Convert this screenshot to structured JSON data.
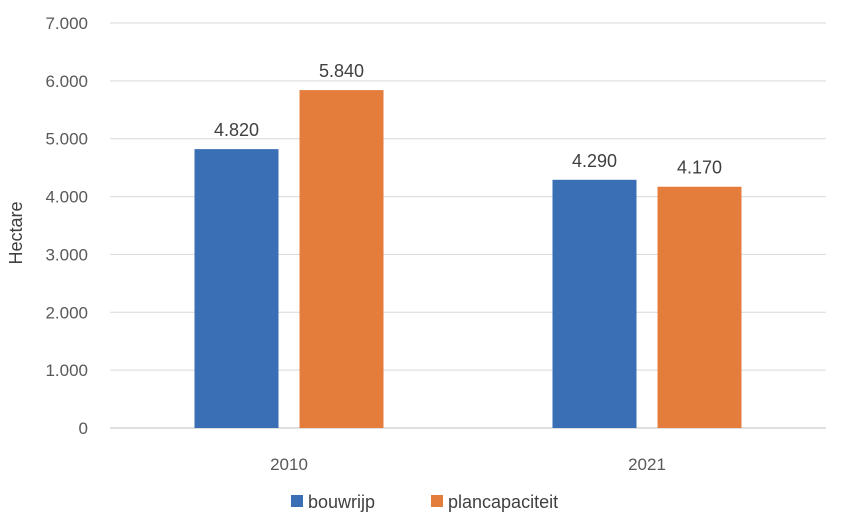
{
  "chart_data": {
    "type": "bar",
    "categories": [
      "2010",
      "2021"
    ],
    "series": [
      {
        "name": "bouwrijp",
        "values": [
          4820,
          4290
        ],
        "labels": [
          "4.820",
          "4.290"
        ],
        "color": "#3A6EB5"
      },
      {
        "name": "plancapaciteit",
        "values": [
          5840,
          4170
        ],
        "labels": [
          "5.840",
          "4.170"
        ],
        "color": "#E47C3C"
      }
    ],
    "ylabel": "Hectare",
    "xlabel": "",
    "ylim": [
      0,
      7000
    ],
    "yticks": [
      0,
      1000,
      2000,
      3000,
      4000,
      5000,
      6000,
      7000
    ],
    "ytick_labels": [
      "0",
      "1.000",
      "2.000",
      "3.000",
      "4.000",
      "5.000",
      "6.000",
      "7.000"
    ],
    "grid": true,
    "gridline_color": "#D9D9D9",
    "legend_position": "bottom"
  }
}
